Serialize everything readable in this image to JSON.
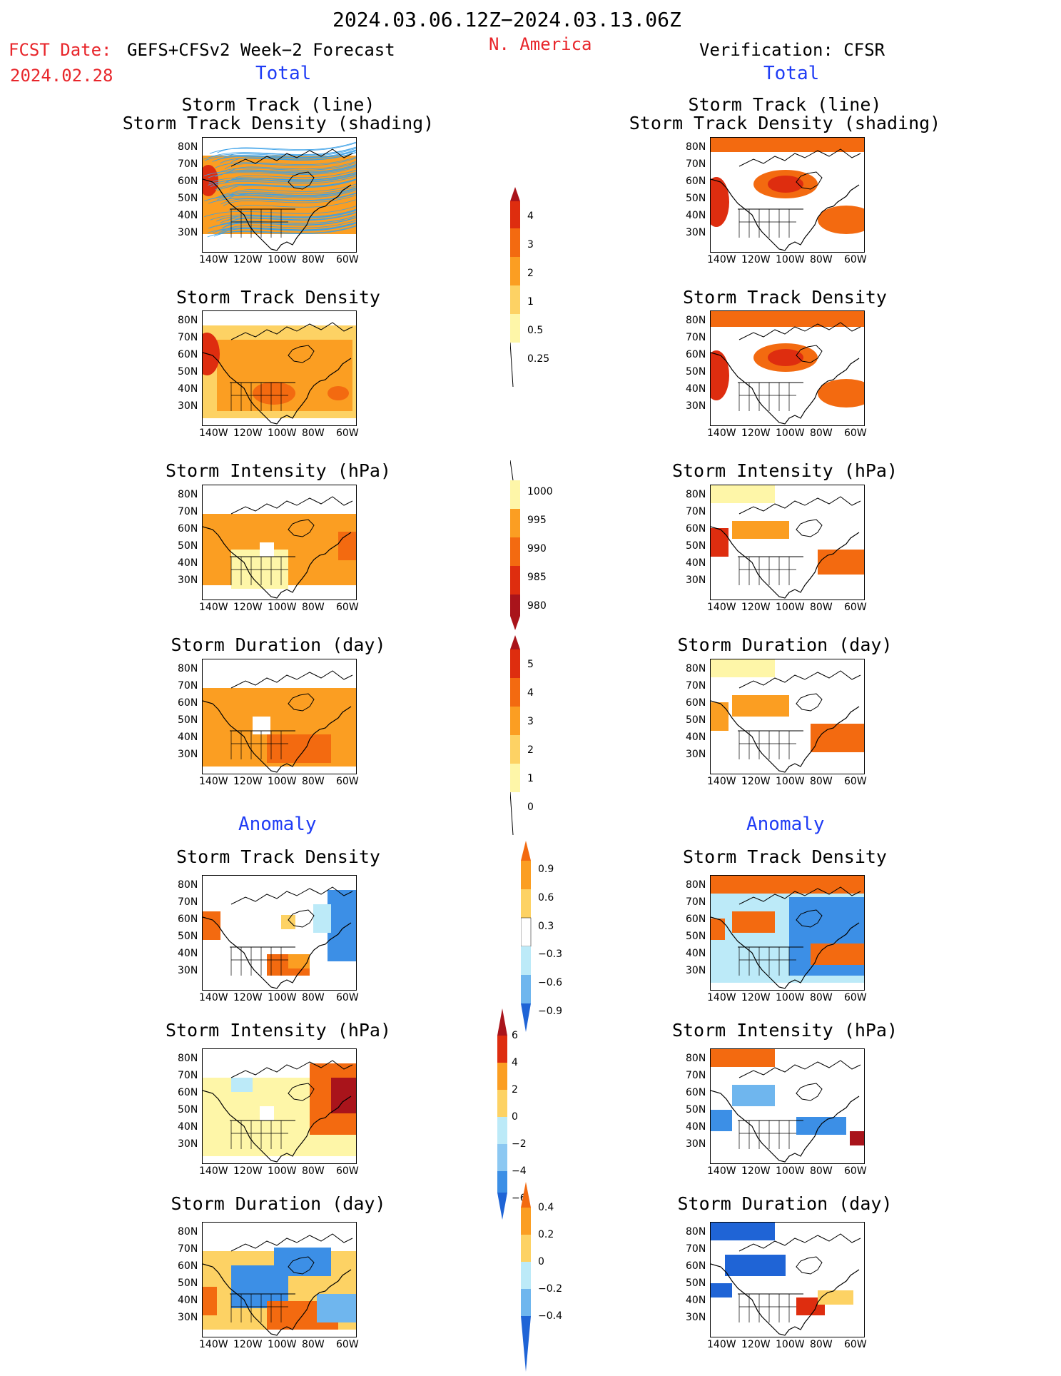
{
  "header": {
    "date_range": "2024.03.06.12Z−2024.03.13.06Z",
    "fcst_label": "FCST Date:",
    "fcst_date": "2024.02.28",
    "model_label": "GEFS+CFSv2 Week−2 Forecast",
    "region": "N. America",
    "verification": "Verification: CFSR",
    "total_left": "Total",
    "total_right": "Total",
    "anomaly_left": "Anomaly",
    "anomaly_right": "Anomaly"
  },
  "panels": {
    "track_title_1": "Storm Track (line)",
    "track_title_2": "Storm Track Density (shading)",
    "density": "Storm Track Density",
    "intensity": "Storm Intensity (hPa)",
    "duration": "Storm Duration (day)"
  },
  "axes": {
    "lat": [
      "80N",
      "70N",
      "60N",
      "50N",
      "40N",
      "30N"
    ],
    "lon": [
      "140W",
      "120W",
      "100W",
      "80W",
      "60W"
    ]
  },
  "colorbars": {
    "track_density_total": [
      "4",
      "3",
      "2",
      "1",
      "0.5",
      "0.25"
    ],
    "intensity_total": [
      "1000",
      "995",
      "990",
      "985",
      "980"
    ],
    "duration_total": [
      "5",
      "4",
      "3",
      "2",
      "1",
      "0"
    ],
    "density_anomaly": [
      "0.9",
      "0.6",
      "0.3",
      "−0.3",
      "−0.6",
      "−0.9"
    ],
    "intensity_anomaly": [
      "6",
      "4",
      "2",
      "0",
      "−2",
      "−4",
      "−6"
    ],
    "duration_anomaly": [
      "0.4",
      "0.2",
      "0",
      "−0.2",
      "−0.4"
    ]
  },
  "colors": {
    "pale_yellow": "#fef6a8",
    "light_orange": "#fdd264",
    "orange": "#fb9e22",
    "dark_orange": "#f36a10",
    "red": "#de2d0f",
    "dark_red": "#a9141b",
    "light_blue": "#bceaf8",
    "mid_blue": "#6fb6ee",
    "blue": "#3c8fe6",
    "dark_blue": "#1f64d6",
    "track_lines": "#3aa0e8"
  }
}
